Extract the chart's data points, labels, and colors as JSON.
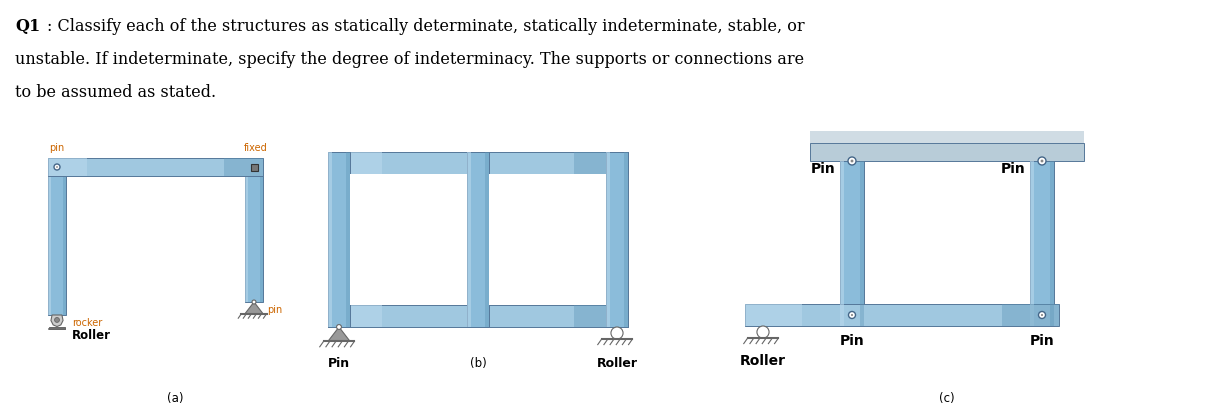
{
  "bg_color": "#ffffff",
  "text_color": "#000000",
  "struct_blue_light": "#b8d8ec",
  "struct_blue_mid": "#8bbcda",
  "struct_blue_dark": "#6098b8",
  "struct_blue_top": "#a0c8e0",
  "ceil_gray": "#b8ccd8",
  "ceil_top": "#d0dce4",
  "support_gray": "#999999",
  "support_dark": "#666666",
  "support_light": "#cccccc",
  "label_orange": "#cc6600",
  "fig_width": 12.32,
  "fig_height": 4.16,
  "dpi": 100,
  "title_q1": "Q1",
  "title_rest": ": Classify each of the structures as statically determinate, statically indeterminate, stable, or",
  "title_line2": "unstable. If indeterminate, specify the degree of indeterminacy. The supports or connections are",
  "title_line3": "to be assumed as stated."
}
